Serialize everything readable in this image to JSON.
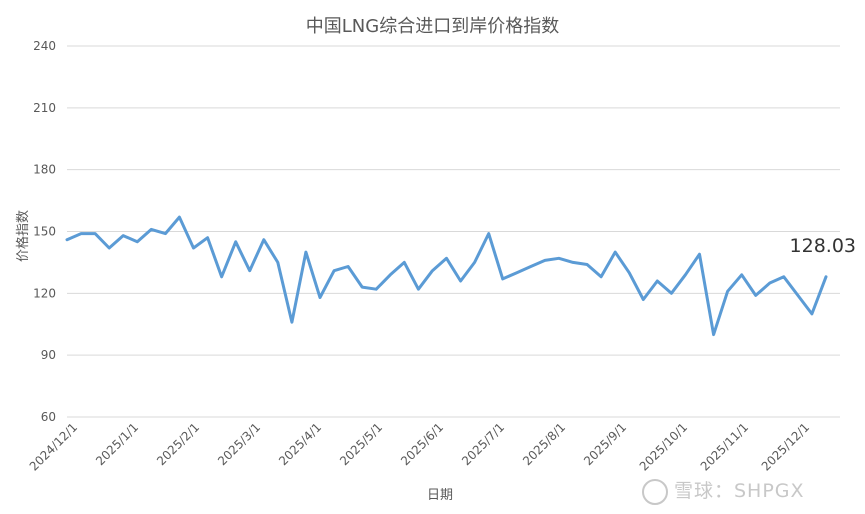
{
  "chart_data": {
    "type": "line",
    "title": "中国LNG综合进口到岸价格指数",
    "xlabel": "日期",
    "ylabel": "价格指数",
    "ylim": [
      60,
      240
    ],
    "yticks": [
      60,
      90,
      120,
      150,
      180,
      210,
      240
    ],
    "grid": true,
    "color": "#5b9bd5",
    "x_tick_labels": [
      "2024/12/1",
      "2025/1/1",
      "2025/2/1",
      "2025/3/1",
      "2025/4/1",
      "2025/5/1",
      "2025/6/1",
      "2025/7/1",
      "2025/8/1",
      "2025/9/1",
      "2025/10/1",
      "2025/11/1",
      "2025/12/1"
    ],
    "series": [
      {
        "values": [
          146,
          149,
          149,
          142,
          148,
          145,
          151,
          149,
          157,
          142,
          147,
          128,
          145,
          131,
          146,
          135,
          106,
          140,
          118,
          131,
          133,
          123,
          122,
          129,
          135,
          122,
          131,
          137,
          126,
          135,
          149,
          127,
          130,
          133,
          136,
          137,
          135,
          134,
          128,
          140,
          130,
          117,
          126,
          120,
          129,
          139,
          100,
          121,
          129,
          119,
          125,
          128,
          119,
          110,
          128.03
        ]
      }
    ],
    "last_value_label": "128.03"
  },
  "watermark": "雪球：SHPGX"
}
